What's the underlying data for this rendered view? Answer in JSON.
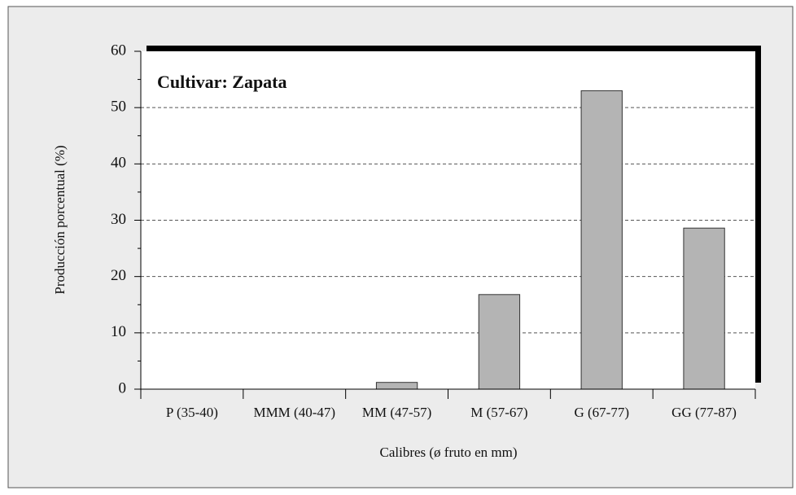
{
  "chart_data": {
    "type": "bar",
    "title": "Cultivar: Zapata",
    "x_label": "Calibres (ø fruto en mm)",
    "y_label": "Producción porcentual (%)",
    "categories": [
      "P (35-40)",
      "MMM (40-47)",
      "MM (47-57)",
      "M (57-67)",
      "G (67-77)",
      "GG (77-87)"
    ],
    "values": [
      0,
      0,
      1.2,
      16.8,
      53,
      28.6
    ],
    "color": "#b4b4b4",
    "ylim": [
      0,
      60
    ],
    "yticks": [
      0,
      10,
      20,
      30,
      40,
      50,
      60
    ],
    "yminorticks": [
      5,
      15,
      25,
      35,
      45,
      55
    ],
    "grid": true
  }
}
